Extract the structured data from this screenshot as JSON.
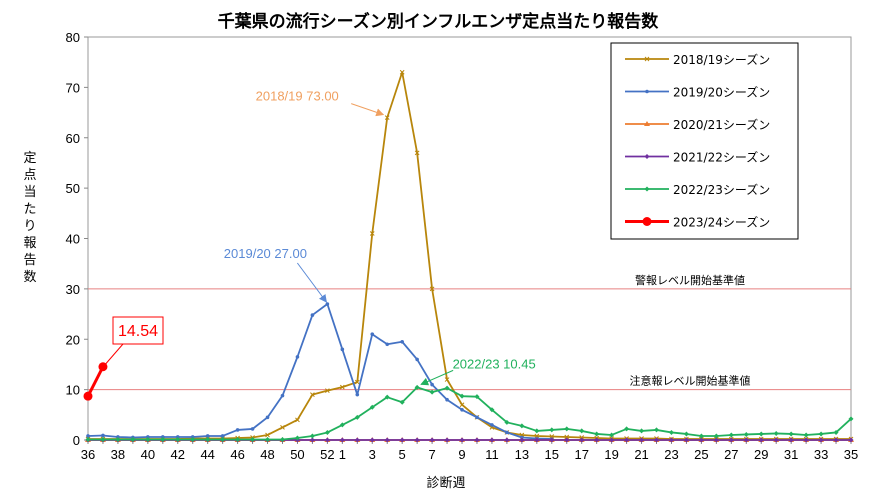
{
  "chart_data": {
    "type": "line",
    "title": "千葉県の流行シーズン別インフルエンザ定点当たり報告数",
    "xlabel": "診断週",
    "ylabel": "定点当たり報告数",
    "ylim": [
      0,
      80
    ],
    "yticks": [
      0,
      10,
      20,
      30,
      40,
      50,
      60,
      70,
      80
    ],
    "x": [
      36,
      37,
      38,
      39,
      40,
      41,
      42,
      43,
      44,
      45,
      46,
      47,
      48,
      49,
      50,
      51,
      52,
      1,
      2,
      3,
      4,
      5,
      6,
      7,
      8,
      9,
      10,
      11,
      12,
      13,
      14,
      15,
      16,
      17,
      18,
      19,
      20,
      21,
      22,
      23,
      24,
      25,
      26,
      27,
      28,
      29,
      30,
      31,
      32,
      33,
      34,
      35
    ],
    "xtick_labels": [
      "36",
      "38",
      "40",
      "42",
      "44",
      "46",
      "48",
      "50",
      "52",
      "1",
      "3",
      "5",
      "7",
      "9",
      "11",
      "13",
      "15",
      "17",
      "19",
      "21",
      "23",
      "25",
      "27",
      "29",
      "31",
      "33",
      "35"
    ],
    "thresholds": [
      {
        "value": 30,
        "label": "警報レベル開始基準値",
        "color": "#e88080"
      },
      {
        "value": 10,
        "label": "注意報レベル開始基準値",
        "color": "#e88080"
      }
    ],
    "series": [
      {
        "name": "2018/19シーズン",
        "color": "#b8860b",
        "marker": "cross",
        "values": [
          0.2,
          0.2,
          0.2,
          0.2,
          0.2,
          0.2,
          0.2,
          0.3,
          0.3,
          0.3,
          0.4,
          0.5,
          1.0,
          2.5,
          4.0,
          9.0,
          9.8,
          10.5,
          11.5,
          41.0,
          64.0,
          73.0,
          57.0,
          30.0,
          12.0,
          7.0,
          4.5,
          2.5,
          1.5,
          1.0,
          0.8,
          0.7,
          0.6,
          0.5,
          0.4,
          0.3,
          0.3,
          0.3,
          0.3,
          0.2,
          0.2,
          0.2,
          0.2,
          0.2,
          0.2,
          0.2,
          0.2,
          0.2,
          0.2,
          0.2,
          0.2,
          0.2
        ]
      },
      {
        "name": "2019/20シーズン",
        "color": "#4472c4",
        "marker": "dot",
        "values": [
          0.8,
          0.9,
          0.6,
          0.5,
          0.6,
          0.6,
          0.6,
          0.6,
          0.8,
          0.8,
          2.0,
          2.2,
          4.5,
          8.8,
          16.5,
          24.8,
          27.0,
          18.0,
          9.0,
          21.0,
          19.0,
          19.5,
          16.0,
          11.0,
          8.0,
          6.0,
          4.5,
          3.0,
          1.5,
          0.5,
          0.3,
          0.2,
          null,
          null,
          null,
          null,
          null,
          null,
          null,
          null,
          null,
          null,
          null,
          null,
          null,
          null,
          null,
          null,
          null,
          null,
          null,
          null
        ]
      },
      {
        "name": "2020/21シーズン",
        "color": "#ed7d31",
        "marker": "triangle",
        "values": [
          0,
          0,
          0,
          0,
          0,
          0,
          0,
          0,
          0,
          0,
          0,
          0,
          0,
          0,
          0,
          0,
          0,
          0,
          0,
          0,
          0,
          0,
          0,
          0,
          0,
          0,
          0,
          0,
          0,
          0,
          0,
          0,
          0,
          0,
          0,
          0,
          0,
          0,
          0,
          0,
          0,
          0,
          0,
          0,
          0,
          0,
          0,
          0,
          0,
          0,
          0,
          0
        ]
      },
      {
        "name": "2021/22シーズン",
        "color": "#7030a0",
        "marker": "diamond",
        "values": [
          0,
          0,
          0,
          0,
          0,
          0,
          0,
          0,
          0,
          0,
          0,
          0,
          0,
          0,
          0,
          0,
          0,
          0,
          0,
          0,
          0,
          0,
          0,
          0,
          0,
          0,
          0,
          0,
          0,
          0,
          0,
          0,
          0,
          0,
          0,
          0,
          0,
          0,
          0,
          0,
          0,
          0,
          0,
          0,
          0,
          0,
          0,
          0,
          0,
          0,
          0,
          0
        ]
      },
      {
        "name": "2022/23シーズン",
        "color": "#21b15d",
        "marker": "diamond",
        "values": [
          0.1,
          0.1,
          0.1,
          0.1,
          0.1,
          0.1,
          0.1,
          0.1,
          0.1,
          0.1,
          0.1,
          0.1,
          0.1,
          0.1,
          0.4,
          0.8,
          1.5,
          3.0,
          4.5,
          6.5,
          8.5,
          7.5,
          10.45,
          9.5,
          10.3,
          8.7,
          8.6,
          6.0,
          3.5,
          2.8,
          1.8,
          2.0,
          2.2,
          1.8,
          1.2,
          1.0,
          2.2,
          1.8,
          2.0,
          1.5,
          1.2,
          0.8,
          0.8,
          1.0,
          1.1,
          1.2,
          1.3,
          1.2,
          1.0,
          1.2,
          1.5,
          4.2
        ]
      },
      {
        "name": "2023/24シーズン",
        "color": "#ff0000",
        "marker": "big-dot",
        "values": [
          8.7,
          14.54,
          null,
          null,
          null,
          null,
          null,
          null,
          null,
          null,
          null,
          null,
          null,
          null,
          null,
          null,
          null,
          null,
          null,
          null,
          null,
          null,
          null,
          null,
          null,
          null,
          null,
          null,
          null,
          null,
          null,
          null,
          null,
          null,
          null,
          null,
          null,
          null,
          null,
          null,
          null,
          null,
          null,
          null,
          null,
          null,
          null,
          null,
          null,
          null,
          null,
          null
        ]
      }
    ],
    "annotations": [
      {
        "text": "2018/19  73.00",
        "color": "#f0a060",
        "series": 0,
        "week": "4"
      },
      {
        "text": "2019/20  27.00",
        "color": "#5b8ad6",
        "series": 1,
        "week": "52"
      },
      {
        "text": "2022/23  10.45",
        "color": "#21b15d",
        "series": 4,
        "week": "6"
      },
      {
        "text": "14.54",
        "color": "#ff0000",
        "series": 5,
        "week": "37"
      }
    ],
    "legend_position": "top-right",
    "grid": false
  }
}
